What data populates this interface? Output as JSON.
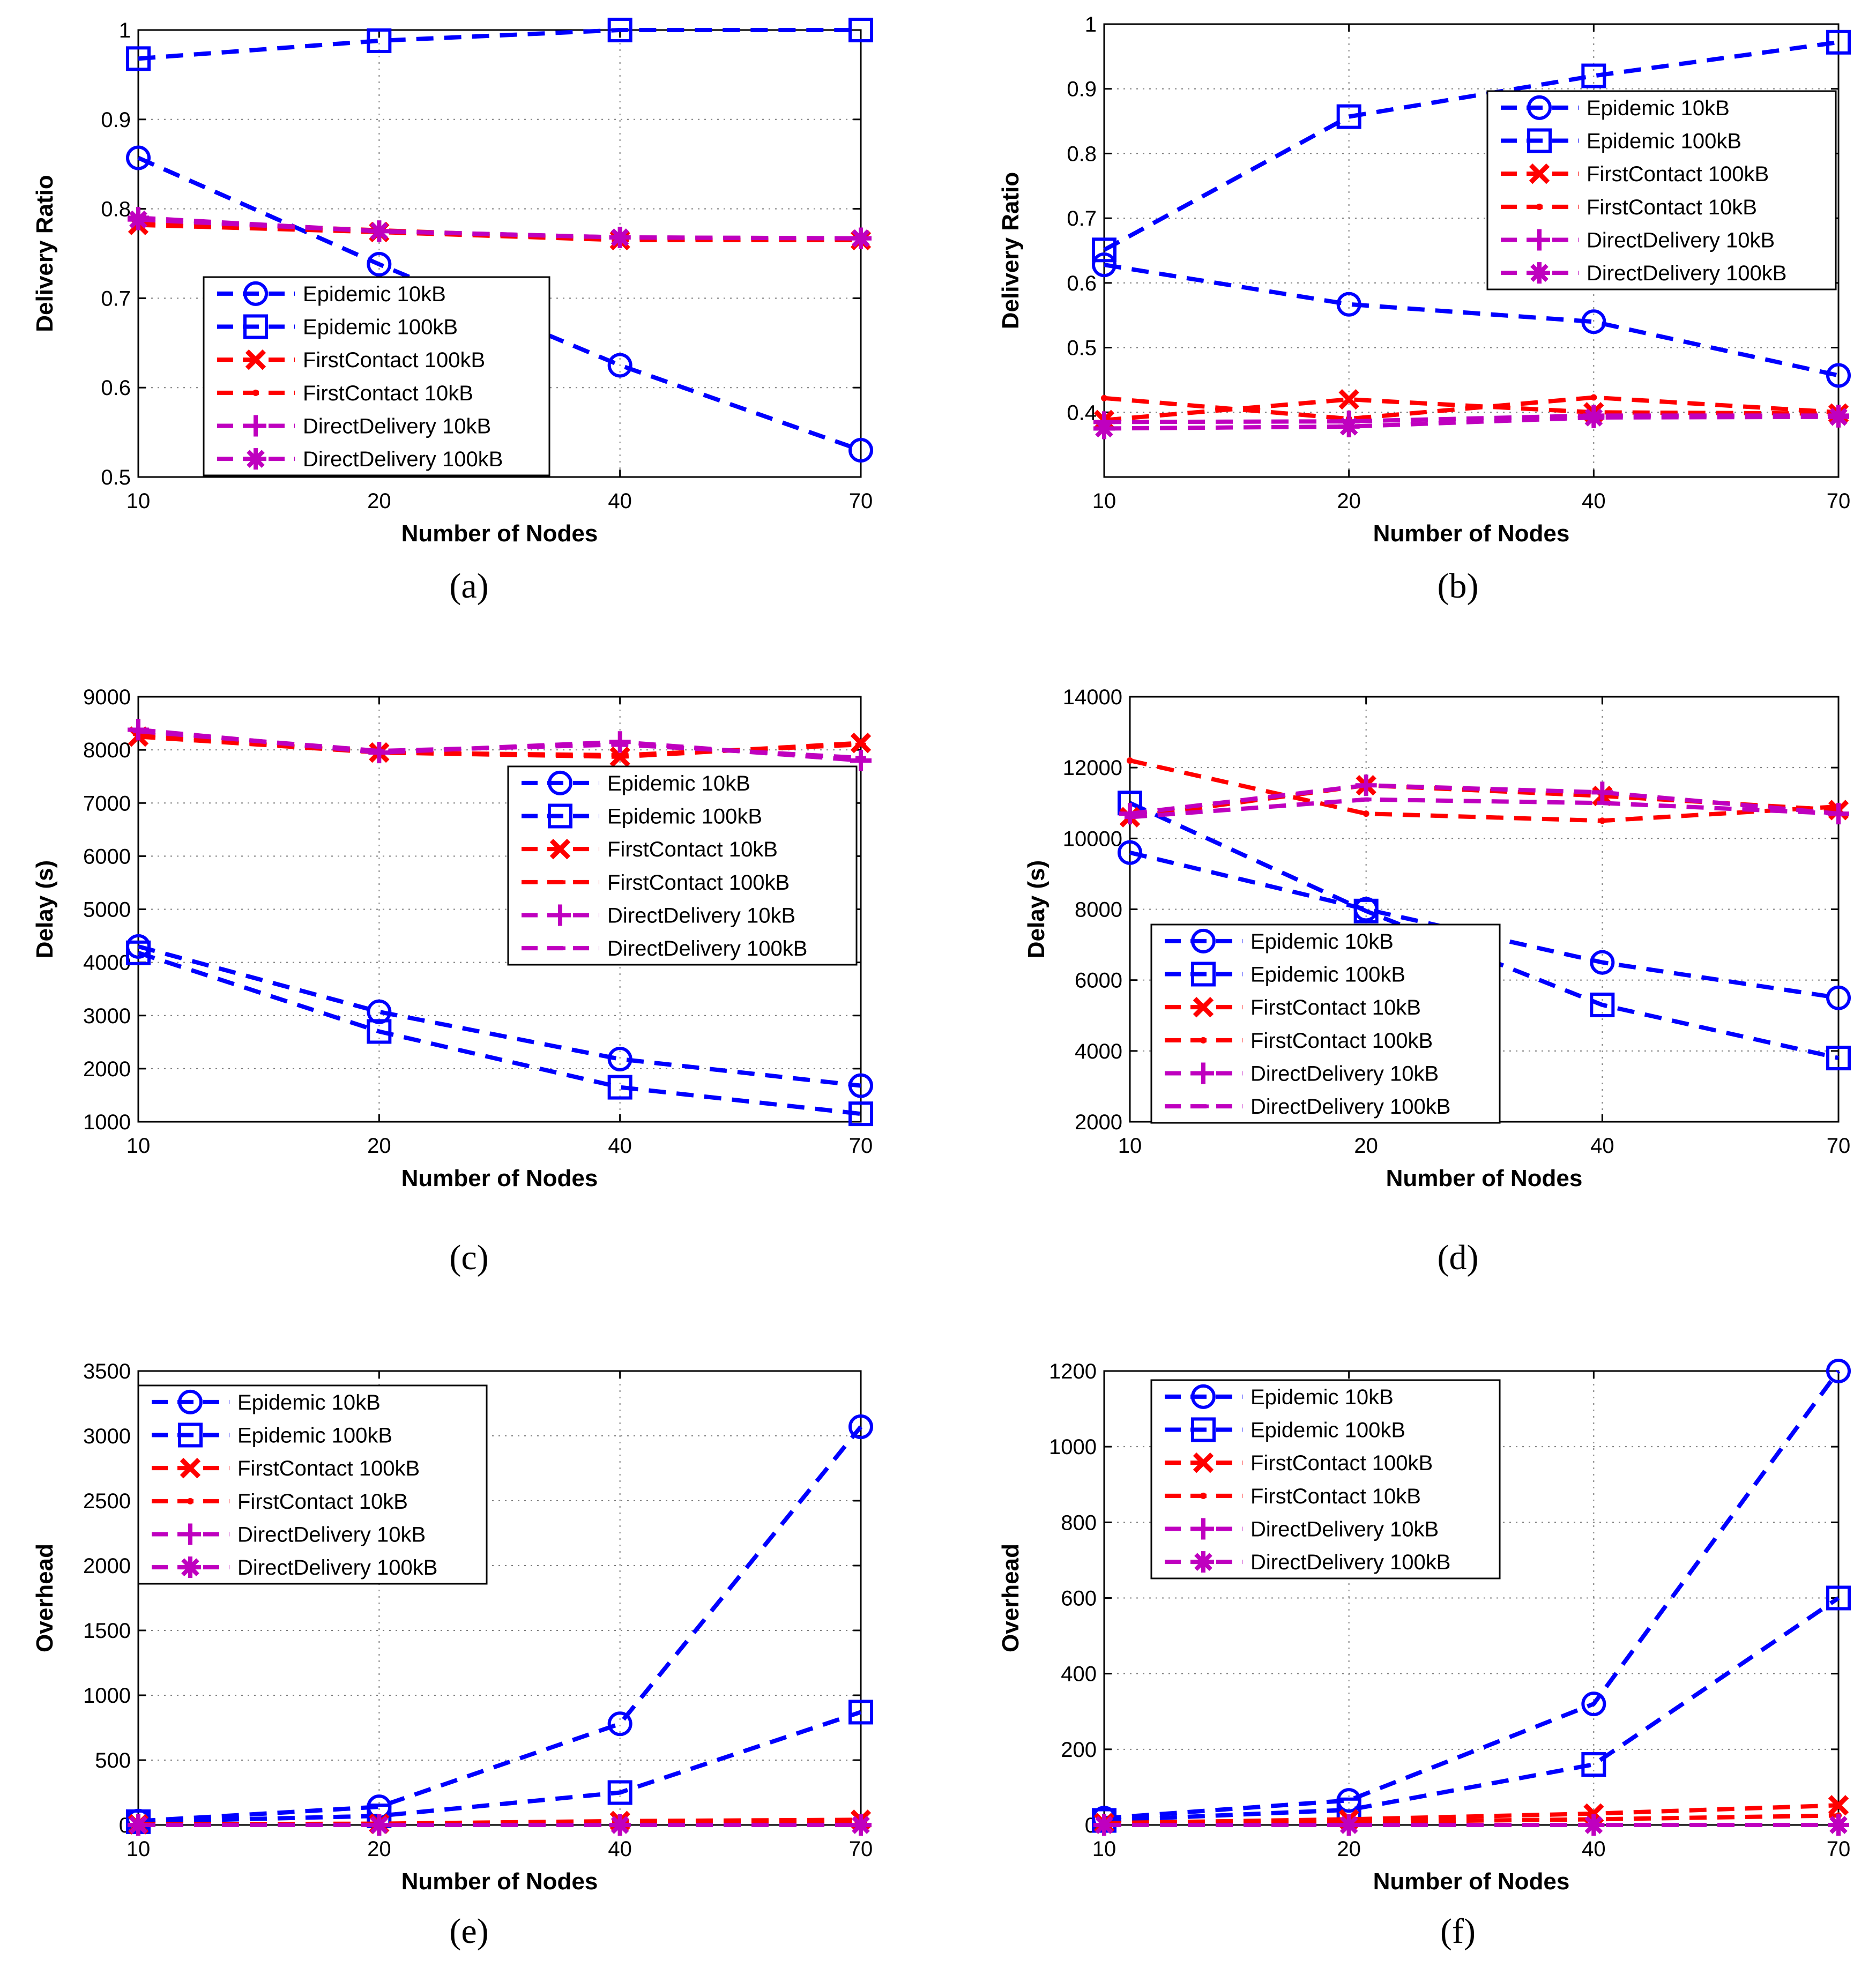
{
  "chart_data": [
    {
      "type": "line",
      "panel_label": "(a)",
      "xlabel": "Number of Nodes",
      "ylabel": "Delivery Ratio",
      "x": [
        "10",
        "20",
        "40",
        "70"
      ],
      "ylim": [
        0.5,
        1.0
      ],
      "yticks": [
        "0.5",
        "0.6",
        "0.7",
        "0.8",
        "0.9",
        "1"
      ],
      "yticks_values": [
        0.5,
        0.6,
        0.7,
        0.8,
        0.9,
        1.0
      ],
      "grid": true,
      "legend_position": "center",
      "series": [
        {
          "name": "Epidemic 10kB",
          "marker": "circle",
          "color": "#0000ff",
          "values": [
            0.857,
            0.738,
            0.625,
            0.53
          ]
        },
        {
          "name": "Epidemic 100kB",
          "marker": "square",
          "color": "#0000ff",
          "values": [
            0.968,
            0.988,
            1.0,
            1.0
          ]
        },
        {
          "name": "FirstContact 100kB",
          "marker": "x",
          "color": "#ff0000",
          "values": [
            0.782,
            0.774,
            0.765,
            0.765
          ]
        },
        {
          "name": "FirstContact 10kB",
          "marker": "dot",
          "color": "#ff0000",
          "values": [
            0.786,
            0.776,
            0.766,
            0.766
          ]
        },
        {
          "name": "DirectDelivery 10kB",
          "marker": "plus",
          "color": "#bf00bf",
          "values": [
            0.79,
            0.775,
            0.768,
            0.767
          ]
        },
        {
          "name": "DirectDelivery 100kB",
          "marker": "asterisk",
          "color": "#bf00bf",
          "values": [
            0.788,
            0.775,
            0.768,
            0.767
          ]
        }
      ]
    },
    {
      "type": "line",
      "panel_label": "(b)",
      "xlabel": "Number of Nodes",
      "ylabel": "Delivery Ratio",
      "x": [
        "10",
        "20",
        "40",
        "70"
      ],
      "ylim": [
        0.3,
        1.0
      ],
      "yticks": [
        "0.4",
        "0.5",
        "0.6",
        "0.7",
        "0.8",
        "0.9",
        "1"
      ],
      "yticks_values": [
        0.4,
        0.5,
        0.6,
        0.7,
        0.8,
        0.9,
        1.0
      ],
      "grid": true,
      "legend_position": "top-right",
      "series": [
        {
          "name": "Epidemic 10kB",
          "marker": "circle",
          "color": "#0000ff",
          "values": [
            0.628,
            0.567,
            0.54,
            0.457
          ]
        },
        {
          "name": "Epidemic 100kB",
          "marker": "square",
          "color": "#0000ff",
          "values": [
            0.651,
            0.857,
            0.92,
            0.972
          ]
        },
        {
          "name": "FirstContact 100kB",
          "marker": "x",
          "color": "#ff0000",
          "values": [
            0.388,
            0.42,
            0.4,
            0.398
          ]
        },
        {
          "name": "FirstContact 10kB",
          "marker": "dot",
          "color": "#ff0000",
          "values": [
            0.422,
            0.39,
            0.423,
            0.4
          ]
        },
        {
          "name": "DirectDelivery 10kB",
          "marker": "plus",
          "color": "#bf00bf",
          "values": [
            0.385,
            0.386,
            0.395,
            0.395
          ]
        },
        {
          "name": "DirectDelivery 100kB",
          "marker": "asterisk",
          "color": "#bf00bf",
          "values": [
            0.375,
            0.378,
            0.392,
            0.393
          ]
        }
      ]
    },
    {
      "type": "line",
      "panel_label": "(c)",
      "xlabel": "Number of Nodes",
      "ylabel": "Delay (s)",
      "x": [
        "10",
        "20",
        "40",
        "70"
      ],
      "ylim": [
        1000,
        9000
      ],
      "yticks": [
        "1000",
        "2000",
        "3000",
        "4000",
        "5000",
        "6000",
        "7000",
        "8000",
        "9000"
      ],
      "yticks_values": [
        1000,
        2000,
        3000,
        4000,
        5000,
        6000,
        7000,
        8000,
        9000
      ],
      "grid": true,
      "legend_position": "center-right",
      "series": [
        {
          "name": "Epidemic 10kB",
          "marker": "circle",
          "color": "#0000ff",
          "values": [
            4300,
            3070,
            2180,
            1680
          ]
        },
        {
          "name": "Epidemic 100kB",
          "marker": "square",
          "color": "#0000ff",
          "values": [
            4180,
            2700,
            1650,
            1150
          ]
        },
        {
          "name": "FirstContact 10kB",
          "marker": "x",
          "color": "#ff0000",
          "values": [
            8250,
            7950,
            7870,
            8130
          ]
        },
        {
          "name": "FirstContact 100kB",
          "marker": "dash",
          "color": "#ff0000",
          "values": [
            8300,
            7950,
            7900,
            8100
          ]
        },
        {
          "name": "DirectDelivery 10kB",
          "marker": "plus",
          "color": "#bf00bf",
          "values": [
            8380,
            7950,
            8150,
            7800
          ]
        },
        {
          "name": "DirectDelivery 100kB",
          "marker": "dash",
          "color": "#bf00bf",
          "values": [
            8350,
            7980,
            8100,
            7850
          ]
        }
      ]
    },
    {
      "type": "line",
      "panel_label": "(d)",
      "xlabel": "Number of Nodes",
      "ylabel": "Delay (s)",
      "x": [
        "10",
        "20",
        "40",
        "70"
      ],
      "ylim": [
        2000,
        14000
      ],
      "yticks": [
        "2000",
        "4000",
        "6000",
        "8000",
        "10000",
        "12000",
        "14000"
      ],
      "yticks_values": [
        2000,
        4000,
        6000,
        8000,
        10000,
        12000,
        14000
      ],
      "grid": true,
      "legend_position": "bottom-left",
      "series": [
        {
          "name": "Epidemic 10kB",
          "marker": "circle",
          "color": "#0000ff",
          "values": [
            9600,
            8000,
            6500,
            5500
          ]
        },
        {
          "name": "Epidemic 100kB",
          "marker": "square",
          "color": "#0000ff",
          "values": [
            11000,
            7950,
            5300,
            3800
          ]
        },
        {
          "name": "FirstContact 10kB",
          "marker": "x",
          "color": "#ff0000",
          "values": [
            10600,
            11500,
            11200,
            10800
          ]
        },
        {
          "name": "FirstContact 100kB",
          "marker": "dot",
          "color": "#ff0000",
          "values": [
            12200,
            10700,
            10500,
            10900
          ]
        },
        {
          "name": "DirectDelivery 10kB",
          "marker": "plus",
          "color": "#bf00bf",
          "values": [
            10700,
            11500,
            11300,
            10700
          ]
        },
        {
          "name": "DirectDelivery 100kB",
          "marker": "dash",
          "color": "#bf00bf",
          "values": [
            10600,
            11100,
            11000,
            10700
          ]
        }
      ]
    },
    {
      "type": "line",
      "panel_label": "(e)",
      "xlabel": "Number of Nodes",
      "ylabel": "Overhead",
      "x": [
        "10",
        "20",
        "40",
        "70"
      ],
      "ylim": [
        0,
        3500
      ],
      "yticks": [
        "0",
        "500",
        "1000",
        "1500",
        "2000",
        "2500",
        "3000",
        "3500"
      ],
      "yticks_values": [
        0,
        500,
        1000,
        1500,
        2000,
        2500,
        3000,
        3500
      ],
      "grid": true,
      "legend_position": "top-left",
      "series": [
        {
          "name": "Epidemic 10kB",
          "marker": "circle",
          "color": "#0000ff",
          "values": [
            30,
            140,
            780,
            3070
          ]
        },
        {
          "name": "Epidemic 100kB",
          "marker": "square",
          "color": "#0000ff",
          "values": [
            25,
            70,
            250,
            870
          ]
        },
        {
          "name": "FirstContact 100kB",
          "marker": "x",
          "color": "#ff0000",
          "values": [
            5,
            10,
            30,
            40
          ]
        },
        {
          "name": "FirstContact 10kB",
          "marker": "dot",
          "color": "#ff0000",
          "values": [
            5,
            8,
            20,
            30
          ]
        },
        {
          "name": "DirectDelivery 10kB",
          "marker": "plus",
          "color": "#bf00bf",
          "values": [
            0,
            0,
            0,
            0
          ]
        },
        {
          "name": "DirectDelivery 100kB",
          "marker": "asterisk",
          "color": "#bf00bf",
          "values": [
            0,
            0,
            0,
            0
          ]
        }
      ]
    },
    {
      "type": "line",
      "panel_label": "(f)",
      "xlabel": "Number of Nodes",
      "ylabel": "Overhead",
      "x": [
        "10",
        "20",
        "40",
        "70"
      ],
      "ylim": [
        0,
        1200
      ],
      "yticks": [
        "0",
        "200",
        "400",
        "600",
        "800",
        "1000",
        "1200"
      ],
      "yticks_values": [
        0,
        200,
        400,
        600,
        800,
        1000,
        1200
      ],
      "grid": true,
      "legend_position": "top-left",
      "series": [
        {
          "name": "Epidemic 10kB",
          "marker": "circle",
          "color": "#0000ff",
          "values": [
            18,
            65,
            320,
            1200
          ]
        },
        {
          "name": "Epidemic 100kB",
          "marker": "square",
          "color": "#0000ff",
          "values": [
            12,
            40,
            160,
            600
          ]
        },
        {
          "name": "FirstContact 100kB",
          "marker": "x",
          "color": "#ff0000",
          "values": [
            5,
            15,
            30,
            52
          ]
        },
        {
          "name": "FirstContact 10kB",
          "marker": "dot",
          "color": "#ff0000",
          "values": [
            3,
            8,
            15,
            25
          ]
        },
        {
          "name": "DirectDelivery 10kB",
          "marker": "plus",
          "color": "#bf00bf",
          "values": [
            0,
            0,
            0,
            0
          ]
        },
        {
          "name": "DirectDelivery 100kB",
          "marker": "asterisk",
          "color": "#bf00bf",
          "values": [
            0,
            0,
            0,
            0
          ]
        }
      ]
    }
  ]
}
